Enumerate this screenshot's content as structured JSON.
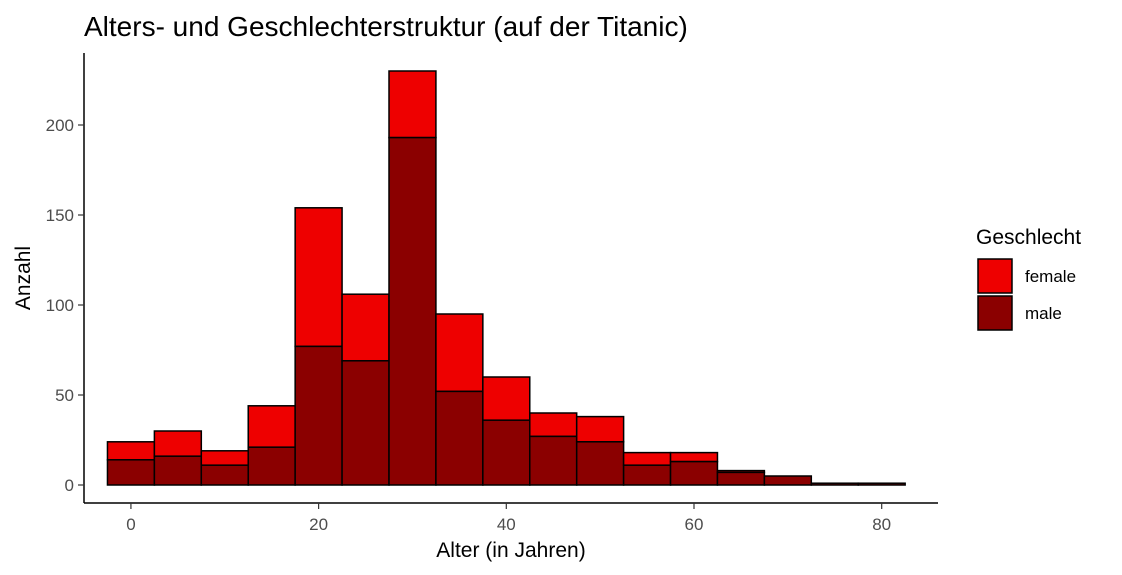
{
  "chart_data": {
    "type": "bar",
    "title": "Alters- und Geschlechterstruktur (auf der Titanic)",
    "xlabel": "Alter (in Jahren)",
    "ylabel": "Anzahl",
    "xlim": [
      -5,
      86
    ],
    "ylim": [
      -10,
      240
    ],
    "x_ticks": [
      0,
      20,
      40,
      60,
      80
    ],
    "y_ticks": [
      0,
      50,
      100,
      150,
      200
    ],
    "bin_width": 5,
    "stacked": true,
    "grid": false,
    "legend_position": "right",
    "legend_title": "Geschlecht",
    "bin_starts": [
      -2.5,
      2.5,
      7.5,
      12.5,
      17.5,
      22.5,
      27.5,
      32.5,
      37.5,
      42.5,
      47.5,
      52.5,
      57.5,
      62.5,
      67.5,
      72.5,
      77.5
    ],
    "series": [
      {
        "name": "male",
        "color": "#8B0000",
        "values": [
          14,
          16,
          11,
          21,
          77,
          69,
          193,
          52,
          36,
          27,
          24,
          11,
          13,
          7,
          5,
          1,
          1
        ]
      },
      {
        "name": "female",
        "color": "#EE0000",
        "values": [
          10,
          14,
          8,
          23,
          77,
          37,
          37,
          43,
          24,
          13,
          14,
          7,
          5,
          1,
          0,
          0,
          0
        ]
      }
    ]
  }
}
